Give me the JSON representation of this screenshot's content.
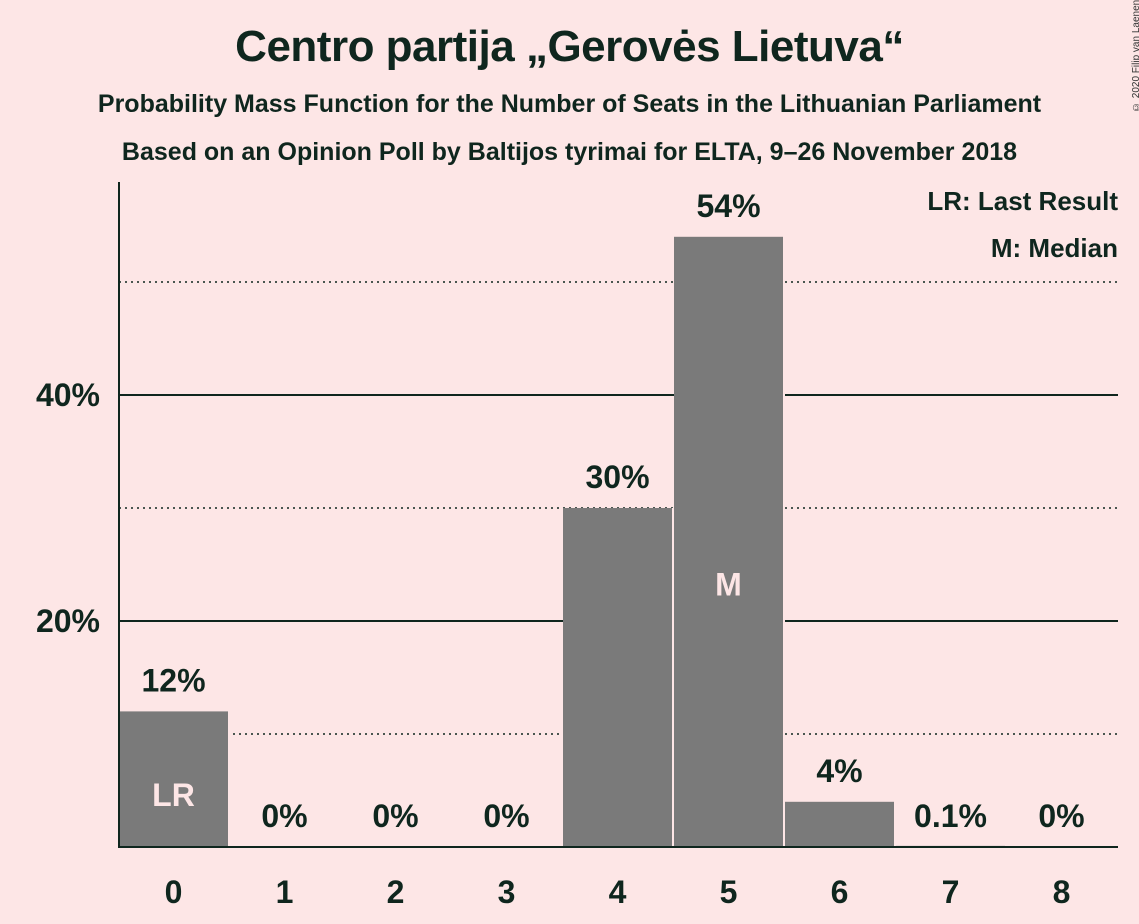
{
  "title": "Centro partija „Gerovės Lietuva“",
  "subtitle1": "Probability Mass Function for the Number of Seats in the Lithuanian Parliament",
  "subtitle2": "Based on an Opinion Poll by Baltijos tyrimai for ELTA, 9–26 November 2018",
  "copyright": "© 2020 Filip van Laenen",
  "legend": {
    "last_result": "LR: Last Result",
    "median": "M: Median"
  },
  "colors": {
    "background": "#fde6e6",
    "bar": "#7a7a7a",
    "text": "#0f261e"
  },
  "chart_data": {
    "type": "bar",
    "categories": [
      "0",
      "1",
      "2",
      "3",
      "4",
      "5",
      "6",
      "7",
      "8"
    ],
    "values": [
      12,
      0,
      0,
      0,
      30,
      54,
      4,
      0.1,
      0
    ],
    "value_labels": [
      "12%",
      "0%",
      "0%",
      "0%",
      "30%",
      "54%",
      "4%",
      "0.1%",
      "0%"
    ],
    "bar_markers": {
      "0": "LR",
      "5": "M"
    },
    "ylim": [
      0,
      58
    ],
    "yticks": [
      20,
      40
    ],
    "ytick_labels": [
      "20%",
      "40%"
    ],
    "minor_gridlines": [
      10,
      30,
      50
    ],
    "xlabel": "",
    "ylabel": "",
    "legend_position": "top-right"
  }
}
